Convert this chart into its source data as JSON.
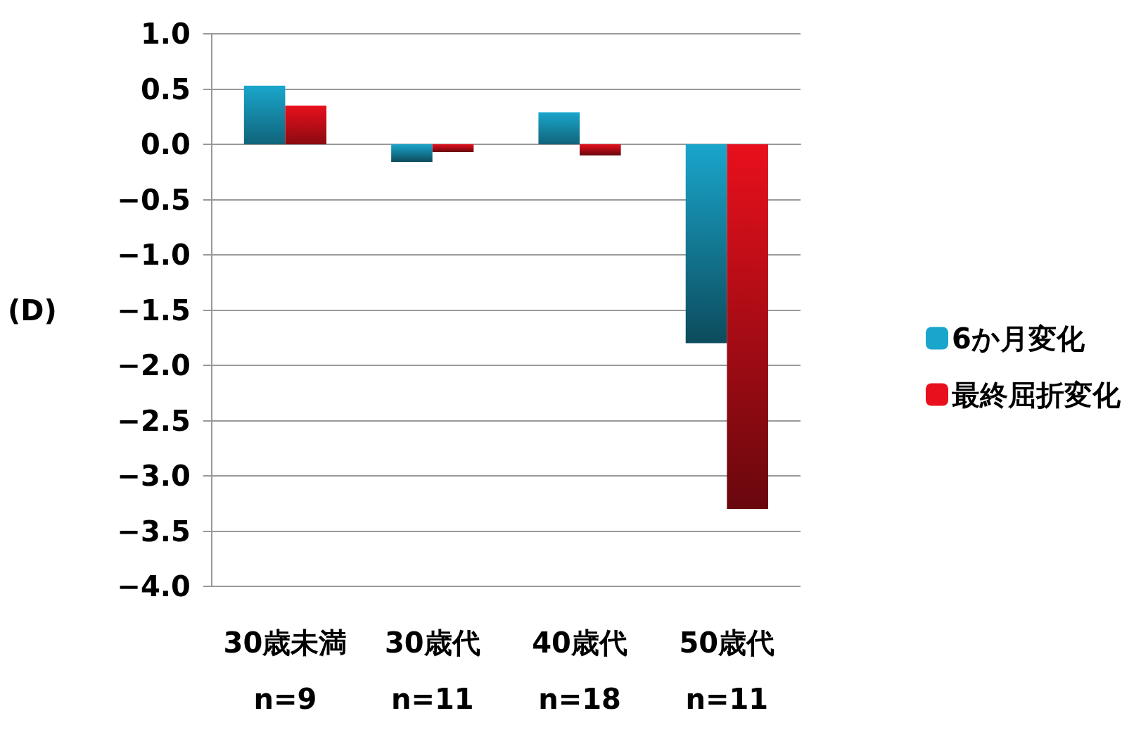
{
  "chart_data": {
    "type": "bar",
    "ylabel": "(D)",
    "categories": [
      "30歳未満\nn=9",
      "30歳代\nn=11",
      "40歳代\nn=18",
      "50歳代\nn=11"
    ],
    "series": [
      {
        "name": "6か月変化",
        "color": "#1aa6cc",
        "values": [
          0.53,
          -0.16,
          0.29,
          -1.8
        ]
      },
      {
        "name": "最終屈折変化",
        "color": "#e8101c",
        "values": [
          0.35,
          -0.07,
          -0.1,
          -3.3
        ]
      }
    ],
    "ylim": [
      -4,
      1
    ],
    "yticks": [
      {
        "value": 1,
        "label": "1.0"
      },
      {
        "value": 0.5,
        "label": "0.5"
      },
      {
        "value": 0,
        "label": "0.0"
      },
      {
        "value": -0.5,
        "label": "−0.5"
      },
      {
        "value": -1,
        "label": "−1.0"
      },
      {
        "value": -1.5,
        "label": "−1.5"
      },
      {
        "value": -2,
        "label": "−2.0"
      },
      {
        "value": -2.5,
        "label": "−2.5"
      },
      {
        "value": -3,
        "label": "−3.0"
      },
      {
        "value": -3.5,
        "label": "−3.5"
      },
      {
        "value": -4,
        "label": "−4.0"
      }
    ],
    "grid": "y",
    "legend": "right"
  }
}
